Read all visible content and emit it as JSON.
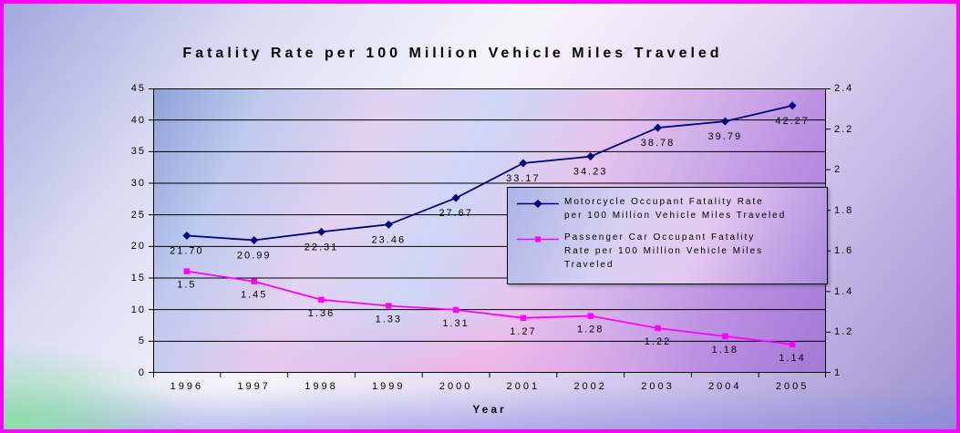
{
  "title": "Fatality Rate per 100 Million Vehicle Miles Traveled",
  "chart_data": {
    "type": "line",
    "title": "Fatality Rate per 100 Million Vehicle Miles Traveled",
    "xlabel": "Year",
    "grid": true,
    "legend_position": "middle-right",
    "categories": [
      "1996",
      "1997",
      "1998",
      "1999",
      "2000",
      "2001",
      "2002",
      "2003",
      "2004",
      "2005"
    ],
    "left_axis": {
      "min": 0,
      "max": 45,
      "ticks": [
        "0",
        "5",
        "10",
        "15",
        "20",
        "25",
        "30",
        "35",
        "40",
        "45"
      ]
    },
    "right_axis": {
      "min": 1,
      "max": 2.4,
      "ticks": [
        "1",
        "1.2",
        "1.4",
        "1.6",
        "1.8",
        "2",
        "2.2",
        "2.4"
      ]
    },
    "series": [
      {
        "name": "Motorcycle Occupant Fatality Rate per 100 Million Vehicle Miles Traveled",
        "legend_lines": [
          "Motorcycle Occupant Fatality Rate\nper 100 Million Vehicle Miles Traveled"
        ],
        "axis": "left",
        "color": "#000080",
        "marker": "diamond",
        "values": [
          21.7,
          20.99,
          22.31,
          23.46,
          27.67,
          33.17,
          34.23,
          38.78,
          39.79,
          42.27
        ],
        "labels": [
          "21.70",
          "20.99",
          "22.31",
          "23.46",
          "27.67",
          "33.17",
          "34.23",
          "38.78",
          "39.79",
          "42.27"
        ]
      },
      {
        "name": "Passenger Car Occupant Fatality Rate per 100 Million Vehicle Miles Traveled",
        "legend_lines": [
          "Passenger Car Occupant Fatality\nRate per 100 Million Vehicle Miles\nTraveled"
        ],
        "axis": "right",
        "color": "#ff00ff",
        "marker": "square",
        "values": [
          1.5,
          1.45,
          1.36,
          1.33,
          1.31,
          1.27,
          1.28,
          1.22,
          1.18,
          1.14
        ],
        "labels": [
          "1.5",
          "1.45",
          "1.36",
          "1.33",
          "1.31",
          "1.27",
          "1.28",
          "1.22",
          "1.18",
          "1.14"
        ]
      }
    ]
  }
}
